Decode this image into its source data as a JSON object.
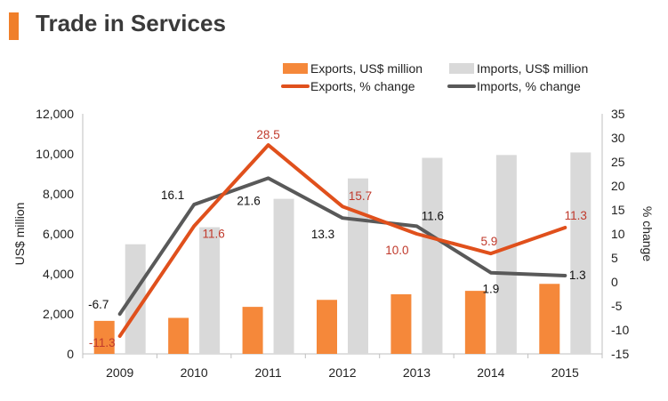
{
  "header": {
    "title": "Trade in Services",
    "accent_color": "#f07f2a"
  },
  "colors": {
    "exports_bar": "#f5883a",
    "imports_bar": "#d9d9d9",
    "exports_line": "#e0501c",
    "imports_line": "#595959",
    "exports_label": "#c0392b",
    "imports_label": "#111111"
  },
  "chart_data": {
    "type": "bar+line",
    "categories": [
      "2009",
      "2010",
      "2011",
      "2012",
      "2013",
      "2014",
      "2015"
    ],
    "series": [
      {
        "name": "Exports, US$ million",
        "type": "bar",
        "axis": "left",
        "values": [
          1650,
          1800,
          2350,
          2700,
          2980,
          3150,
          3500
        ]
      },
      {
        "name": "Imports, US$ million",
        "type": "bar",
        "axis": "left",
        "values": [
          5480,
          6330,
          7750,
          8770,
          9800,
          9940,
          10070
        ]
      },
      {
        "name": "Exports, % change",
        "type": "line",
        "axis": "right",
        "values": [
          -11.3,
          11.6,
          28.5,
          15.7,
          10.0,
          5.9,
          11.3
        ],
        "labels": [
          "-11.3",
          "11.6",
          "28.5",
          "15.7",
          "10.0",
          "5.9",
          "11.3"
        ]
      },
      {
        "name": "Imports, % change",
        "type": "line",
        "axis": "right",
        "values": [
          -6.7,
          16.1,
          21.6,
          13.3,
          11.6,
          1.9,
          1.3
        ],
        "labels": [
          "-6.7",
          "16.1",
          "21.6",
          "13.3",
          "11.6",
          "1.9",
          "1.3"
        ]
      }
    ],
    "ylabel": "US$ million",
    "y2label": "% change",
    "ylim": [
      0,
      12000
    ],
    "y2lim": [
      -15,
      35
    ],
    "yticks": [
      "0",
      "2,000",
      "4,000",
      "6,000",
      "8,000",
      "10,000",
      "12,000"
    ],
    "y2ticks": [
      "-15",
      "-10",
      "-5",
      "0",
      "5",
      "10",
      "15",
      "20",
      "25",
      "30",
      "35"
    ],
    "legend": [
      "Exports, US$ million",
      "Imports, US$ million",
      "Exports, % change",
      "Imports, % change"
    ],
    "legend_position": "top-right",
    "grid": false
  }
}
